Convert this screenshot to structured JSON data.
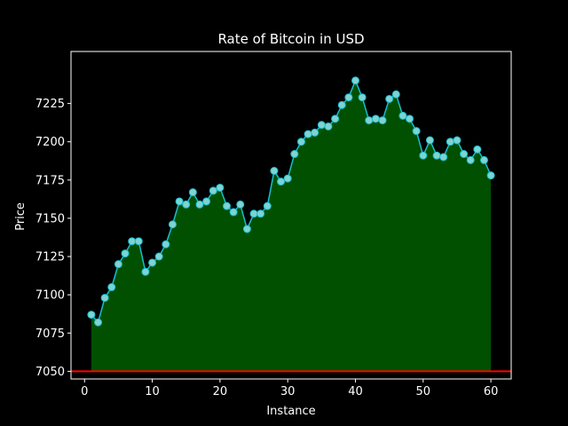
{
  "chart_data": {
    "type": "area",
    "title": "Rate of Bitcoin in USD",
    "xlabel": "Instance",
    "ylabel": "Price",
    "xlim": [
      -2,
      63
    ],
    "ylim": [
      7045,
      7259
    ],
    "xticks": [
      0,
      10,
      20,
      30,
      40,
      50,
      60
    ],
    "yticks": [
      7050,
      7075,
      7100,
      7125,
      7150,
      7175,
      7200,
      7225
    ],
    "grid": false,
    "fill_baseline": 7050,
    "reference_line": {
      "y": 7050,
      "color": "#ff0000"
    },
    "colors": {
      "background": "#000000",
      "line": "#17becf",
      "marker_face": "#7fd3d3",
      "fill": "#005000",
      "axes": "#ffffff",
      "text": "#ffffff"
    },
    "x": [
      1,
      2,
      3,
      4,
      5,
      6,
      7,
      8,
      9,
      10,
      11,
      12,
      13,
      14,
      15,
      16,
      17,
      18,
      19,
      20,
      21,
      22,
      23,
      24,
      25,
      26,
      27,
      28,
      29,
      30,
      31,
      32,
      33,
      34,
      35,
      36,
      37,
      38,
      39,
      40,
      41,
      42,
      43,
      44,
      45,
      46,
      47,
      48,
      49,
      50,
      51,
      52,
      53,
      54,
      55,
      56,
      57,
      58,
      59,
      60
    ],
    "values": [
      7087,
      7082,
      7098,
      7105,
      7120,
      7127,
      7135,
      7135,
      7115,
      7121,
      7125,
      7133,
      7146,
      7161,
      7159,
      7167,
      7159,
      7161,
      7168,
      7170,
      7158,
      7154,
      7159,
      7143,
      7153,
      7153,
      7158,
      7181,
      7174,
      7176,
      7192,
      7200,
      7205,
      7206,
      7211,
      7210,
      7215,
      7224,
      7229,
      7240,
      7229,
      7214,
      7215,
      7214,
      7228,
      7231,
      7217,
      7215,
      7207,
      7191,
      7201,
      7191,
      7190,
      7200,
      7201,
      7192,
      7188,
      7195,
      7188,
      7178
    ]
  }
}
